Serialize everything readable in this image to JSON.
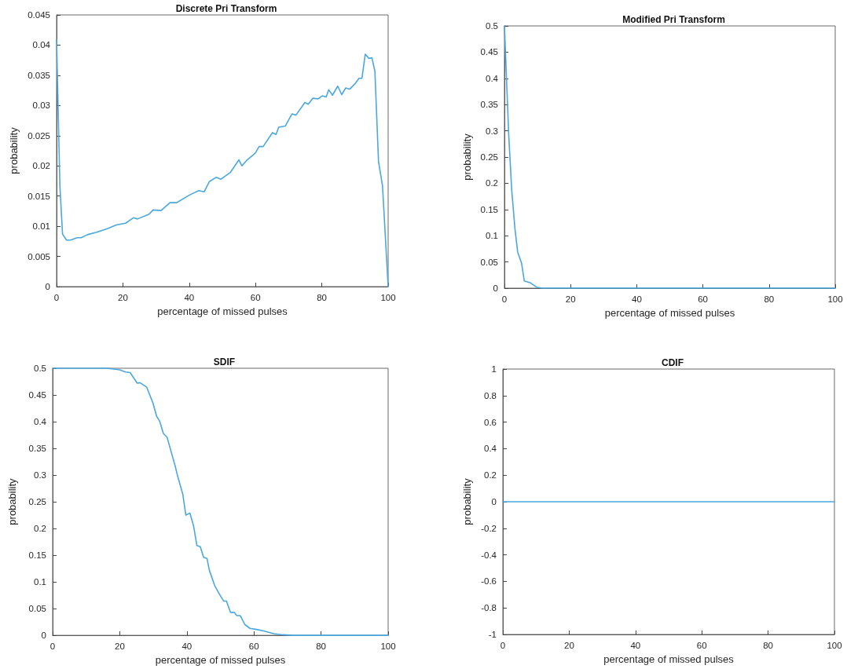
{
  "chart_data": [
    {
      "type": "line",
      "title": "Discrete Pri Transform",
      "xlabel": "percentage of missed pulses",
      "ylabel": "probability",
      "xlim": [
        0,
        100
      ],
      "xticks": [
        0,
        20,
        40,
        60,
        80,
        100
      ],
      "ylim": [
        0,
        0.045
      ],
      "yticks": [
        0,
        0.005,
        0.01,
        0.015,
        0.02,
        0.025,
        0.03,
        0.035,
        0.04,
        0.045
      ],
      "grid": false,
      "marker": "none",
      "line_style": "solid",
      "series": [
        {
          "color": "#4aa8de",
          "x": [
            0,
            1,
            1.8,
            3,
            4.2,
            6.2,
            7.4,
            9.3,
            12.1,
            15.3,
            18,
            20.8,
            23.2,
            24.4,
            27.9,
            29.1,
            31.5,
            34.2,
            36.2,
            40.2,
            42.9,
            44.5,
            46.1,
            48.1,
            49.6,
            52.4,
            55,
            55.9,
            57.5,
            59.9,
            61.1,
            62.3,
            65.1,
            66.2,
            67,
            69,
            71,
            72.2,
            74.9,
            75.9,
            77.3,
            78.9,
            80.1,
            81.3,
            82.1,
            83.2,
            84.8,
            86,
            87.2,
            88.4,
            90,
            91.2,
            92.1,
            93.1,
            94.2,
            95.1,
            96,
            97.1,
            98.3,
            100
          ],
          "values": [
            0.0409,
            0.0167,
            0.0087,
            0.0077,
            0.0077,
            0.0081,
            0.0081,
            0.0086,
            0.009,
            0.0096,
            0.0102,
            0.0105,
            0.0114,
            0.0112,
            0.012,
            0.0127,
            0.0126,
            0.0139,
            0.0139,
            0.0152,
            0.0159,
            0.0157,
            0.0174,
            0.0181,
            0.0178,
            0.0189,
            0.021,
            0.02,
            0.021,
            0.0221,
            0.0232,
            0.0232,
            0.0255,
            0.0252,
            0.0264,
            0.0266,
            0.0286,
            0.0284,
            0.0305,
            0.0302,
            0.0312,
            0.0311,
            0.0316,
            0.0314,
            0.0326,
            0.0317,
            0.0332,
            0.0318,
            0.0329,
            0.0327,
            0.0336,
            0.0345,
            0.0345,
            0.0385,
            0.0378,
            0.0379,
            0.0357,
            0.0207,
            0.0167,
            0
          ]
        }
      ]
    },
    {
      "type": "line",
      "title": "Modified Pri Transform",
      "xlabel": "percentage of missed pulses",
      "ylabel": "probability",
      "xlim": [
        0,
        100
      ],
      "xticks": [
        0,
        20,
        40,
        60,
        80,
        100
      ],
      "ylim": [
        0,
        0.5
      ],
      "yticks": [
        0,
        0.05,
        0.1,
        0.15,
        0.2,
        0.25,
        0.3,
        0.35,
        0.4,
        0.45,
        0.5
      ],
      "grid": false,
      "marker": "none",
      "line_style": "solid",
      "series": [
        {
          "color": "#4aa8de",
          "x": [
            0,
            1.3,
            2.2,
            3.2,
            4,
            5.2,
            6,
            7.9,
            9.7,
            11.3,
            20,
            40,
            60,
            80,
            100
          ],
          "values": [
            0.5,
            0.292,
            0.187,
            0.112,
            0.069,
            0.047,
            0.014,
            0.01,
            0.002,
            0,
            0,
            0,
            0,
            0,
            0
          ]
        }
      ]
    },
    {
      "type": "line",
      "title": "SDIF",
      "xlabel": "percentage of missed pulses",
      "ylabel": "probability",
      "xlim": [
        0,
        100
      ],
      "xticks": [
        0,
        20,
        40,
        60,
        80,
        100
      ],
      "ylim": [
        0,
        0.5
      ],
      "yticks": [
        0,
        0.05,
        0.1,
        0.15,
        0.2,
        0.25,
        0.3,
        0.35,
        0.4,
        0.45,
        0.5
      ],
      "grid": false,
      "marker": "none",
      "line_style": "solid",
      "series": [
        {
          "color": "#4aa8de",
          "x": [
            0,
            16.3,
            20,
            21.7,
            23.1,
            25.2,
            26,
            28,
            29.9,
            31,
            31.9,
            33,
            34.1,
            35,
            36.6,
            37.3,
            38.8,
            39.7,
            40.9,
            42,
            43,
            44,
            45,
            46,
            46.7,
            48.3,
            49.8,
            51,
            51.8,
            53,
            54.1,
            54.9,
            55.9,
            57.3,
            58.8,
            60.8,
            63.1,
            65.9,
            68.6,
            71.7,
            100
          ],
          "values": [
            0.5,
            0.5,
            0.497,
            0.493,
            0.492,
            0.472,
            0.473,
            0.465,
            0.435,
            0.41,
            0.401,
            0.378,
            0.371,
            0.351,
            0.315,
            0.297,
            0.264,
            0.225,
            0.229,
            0.205,
            0.168,
            0.166,
            0.146,
            0.144,
            0.122,
            0.093,
            0.076,
            0.064,
            0.064,
            0.043,
            0.043,
            0.037,
            0.037,
            0.02,
            0.013,
            0.011,
            0.008,
            0.003,
            0.001,
            0,
            0
          ]
        }
      ]
    },
    {
      "type": "line",
      "title": "CDIF",
      "xlabel": "percentage of missed pulses",
      "ylabel": "probability",
      "xlim": [
        0,
        100
      ],
      "xticks": [
        0,
        20,
        40,
        60,
        80,
        100
      ],
      "ylim": [
        -1,
        1
      ],
      "yticks": [
        -1,
        -0.8,
        -0.6,
        -0.4,
        -0.2,
        0,
        0.2,
        0.4,
        0.6,
        0.8,
        1
      ],
      "grid": false,
      "marker": "none",
      "line_style": "solid",
      "series": [
        {
          "color": "#4aa8de",
          "x": [
            0,
            100
          ],
          "values": [
            0,
            0
          ]
        }
      ]
    }
  ]
}
